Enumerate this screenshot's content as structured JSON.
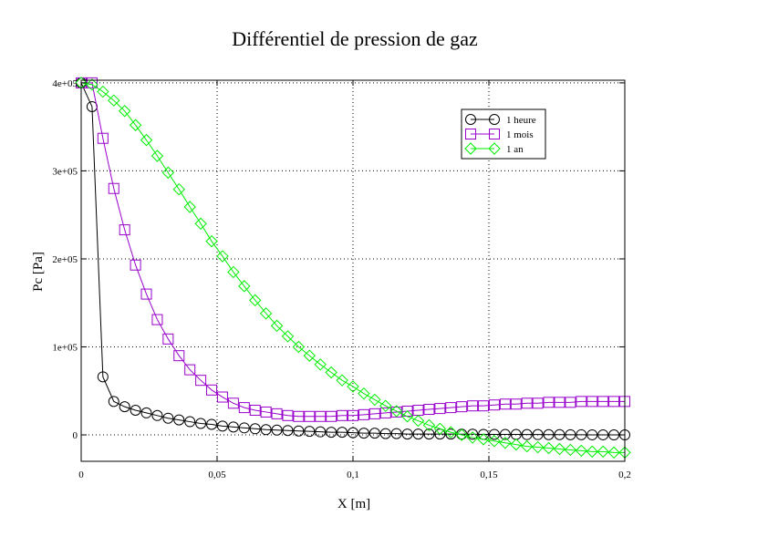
{
  "chart_data": {
    "type": "line",
    "title": "Différentiel de pression de gaz",
    "xlabel": "X [m]",
    "ylabel": "Pc [Pa]",
    "xlim": [
      0,
      0.2
    ],
    "ylim": [
      -30000,
      403000
    ],
    "grid": true,
    "legend_position": "top-right",
    "x_ticks": [
      0,
      0.05,
      0.1,
      0.15,
      0.2
    ],
    "x_tick_labels": [
      "0",
      "0,05",
      "0,1",
      "0,15",
      "0,2"
    ],
    "y_ticks": [
      0,
      100000,
      200000,
      300000,
      400000
    ],
    "y_tick_labels": [
      "0",
      "1e+05",
      "2e+05",
      "3e+05",
      "4e+05"
    ],
    "x_step": 0.004,
    "series": [
      {
        "name": "1 heure",
        "color": "#000000",
        "marker": "circle",
        "values": [
          400000,
          373000,
          66000,
          38000,
          32000,
          28000,
          25000,
          22000,
          19000,
          17000,
          15000,
          13000,
          12000,
          10000,
          9000,
          8000,
          7000,
          6000,
          5500,
          5000,
          4500,
          4000,
          3500,
          3000,
          3000,
          2500,
          2000,
          2000,
          1500,
          1500,
          1000,
          1000,
          1000,
          1000,
          1000,
          800,
          800,
          600,
          600,
          500,
          500,
          400,
          400,
          300,
          300,
          200,
          200,
          100,
          100,
          0,
          0
        ]
      },
      {
        "name": "1 mois",
        "color": "#9900cc",
        "marker": "square",
        "values": [
          400000,
          400000,
          337000,
          280000,
          233000,
          193000,
          160000,
          131000,
          109000,
          90000,
          74000,
          62000,
          51000,
          43000,
          36000,
          31000,
          28000,
          26000,
          24000,
          22000,
          21000,
          21000,
          21000,
          21000,
          22000,
          22000,
          23000,
          24000,
          25000,
          26000,
          27000,
          28000,
          29000,
          30000,
          31000,
          32000,
          33000,
          33000,
          34000,
          35000,
          35000,
          36000,
          36000,
          37000,
          37000,
          37000,
          38000,
          38000,
          38000,
          38000,
          38000
        ]
      },
      {
        "name": "1 an",
        "color": "#00ee00",
        "marker": "diamond",
        "values": [
          400000,
          398000,
          390000,
          380000,
          368000,
          352000,
          335000,
          317000,
          298000,
          279000,
          259000,
          240000,
          220000,
          203000,
          185000,
          169000,
          153000,
          138000,
          124000,
          112000,
          100000,
          90000,
          80000,
          71000,
          62000,
          55000,
          47000,
          40000,
          33000,
          27000,
          21000,
          16000,
          11000,
          7000,
          3000,
          0,
          -3000,
          -5000,
          -7000,
          -9000,
          -11000,
          -13000,
          -14000,
          -15000,
          -16000,
          -17000,
          -18000,
          -19000,
          -19000,
          -20000,
          -20000
        ]
      }
    ]
  }
}
